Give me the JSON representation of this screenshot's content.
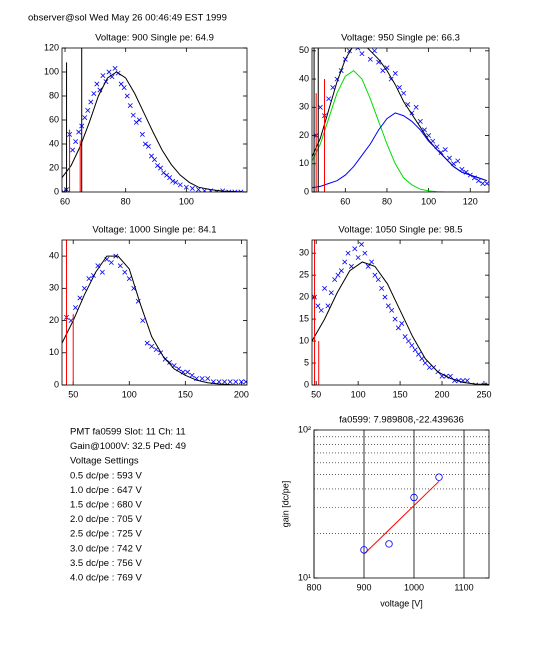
{
  "header": "observer@sol  Wed May 26 00:46:49 EST 1999",
  "info": {
    "lines": [
      "PMT fa0599 Slot: 11 Ch: 11",
      "Gain@1000V: 32.5 Ped: 49",
      "Voltage Settings",
      "0.5 dc/pe : 593 V",
      "1.0 dc/pe : 647 V",
      "1.5 dc/pe : 680 V",
      "2.0 dc/pe : 705 V",
      "2.5 dc/pe : 725 V",
      "3.0 dc/pe : 742 V",
      "3.5 dc/pe : 756 V",
      "4.0 dc/pe : 769 V"
    ]
  },
  "chart_data": [
    {
      "type": "scatter",
      "title": "Voltage: 900 Single pe: 64.9",
      "xlim": [
        59,
        120
      ],
      "xticks": [
        60,
        80,
        100
      ],
      "ylim": [
        0,
        120
      ],
      "yticks": [
        0,
        20,
        40,
        60,
        80,
        100,
        120
      ],
      "series": [
        {
          "color": "#0000ff",
          "style": "marker",
          "marker": "x",
          "x": [
            59.5,
            60.5,
            61.5,
            62.5,
            63.5,
            64.5,
            65.5,
            66.5,
            67.5,
            68.5,
            69.5,
            70.5,
            71.5,
            72.5,
            73.5,
            74.5,
            75.5,
            76.5,
            77.5,
            78.5,
            79.5,
            80.5,
            81.5,
            82.5,
            83.5,
            84.5,
            85.5,
            86.5,
            87.5,
            88.5,
            89.5,
            90.5,
            91.5,
            92.5,
            93.5,
            94.5,
            95.5,
            96.5,
            98,
            100,
            102,
            104,
            106,
            108,
            110,
            112,
            114,
            116,
            118
          ],
          "values": [
            0,
            2,
            48,
            35,
            42,
            50,
            55,
            62,
            68,
            75,
            82,
            90,
            85,
            97,
            92,
            100,
            96,
            103,
            99,
            90,
            87,
            80,
            72,
            64,
            58,
            60,
            48,
            40,
            38,
            30,
            27,
            22,
            20,
            16,
            14,
            12,
            9,
            8,
            6,
            4,
            3,
            2,
            1,
            1,
            0,
            1,
            0,
            0,
            0
          ]
        },
        {
          "color": "#000000",
          "style": "line",
          "x": [
            59,
            62,
            65,
            68,
            71,
            74,
            77,
            80,
            83,
            86,
            89,
            92,
            95,
            98,
            101,
            104,
            108,
            112,
            120
          ],
          "values": [
            12,
            22,
            38,
            58,
            80,
            95,
            100,
            95,
            82,
            66,
            50,
            35,
            23,
            14,
            8,
            4,
            2,
            0.7,
            0
          ]
        },
        {
          "color": "#ff0000",
          "style": "stem",
          "x": [
            61.5,
            65
          ],
          "values": [
            52,
            43
          ]
        },
        {
          "color": "#000000",
          "style": "stem",
          "x": [
            60.5,
            65.5
          ],
          "values": [
            108,
            120
          ]
        }
      ]
    },
    {
      "type": "scatter",
      "title": "Voltage: 950 Single pe: 66.3",
      "xlim": [
        44,
        129
      ],
      "xticks": [
        60,
        80,
        100,
        120
      ],
      "ylim": [
        0,
        51
      ],
      "yticks": [
        0,
        10,
        20,
        30,
        40,
        50
      ],
      "series": [
        {
          "color": "#0000ff",
          "style": "marker",
          "marker": "x",
          "x": [
            46,
            48,
            50,
            52,
            54,
            56,
            58,
            60,
            62,
            64,
            66,
            68,
            70,
            72,
            74,
            76,
            78,
            80,
            82,
            84,
            86,
            88,
            90,
            92,
            94,
            96,
            98,
            100,
            102,
            104,
            106,
            108,
            110,
            112,
            114,
            116,
            118,
            120,
            122,
            124,
            126,
            128
          ],
          "values": [
            20,
            30,
            27,
            33,
            37,
            40,
            43,
            47,
            50,
            52,
            51,
            49,
            53,
            47,
            50,
            46,
            43,
            44,
            40,
            42,
            37,
            35,
            31,
            28,
            30,
            25,
            22,
            20,
            18,
            16,
            14,
            15,
            12,
            10,
            11,
            8,
            7,
            6,
            5,
            4,
            3,
            3
          ]
        },
        {
          "color": "#000000",
          "style": "line",
          "x": [
            44,
            48,
            52,
            56,
            60,
            64,
            68,
            72,
            76,
            80,
            84,
            88,
            92,
            96,
            100,
            104,
            108,
            112,
            116,
            120,
            124,
            128
          ],
          "values": [
            12.5,
            19,
            29,
            39,
            47,
            52,
            53,
            50,
            47,
            43,
            38,
            32,
            27.5,
            23,
            18.4,
            15,
            12,
            9,
            7,
            6,
            5,
            4
          ]
        },
        {
          "color": "#00dd00",
          "style": "line",
          "x": [
            44,
            48,
            52,
            56,
            60,
            64,
            68,
            72,
            76,
            80,
            84,
            88,
            92,
            96,
            100,
            104,
            108,
            112,
            116,
            120,
            124,
            128
          ],
          "values": [
            11,
            17,
            26,
            35,
            41,
            43,
            40,
            33,
            25,
            17,
            10,
            5,
            2.5,
            1,
            0.4,
            0.1,
            0,
            0,
            0,
            0,
            0,
            0
          ]
        },
        {
          "color": "#0000ff",
          "style": "line",
          "x": [
            44,
            48,
            52,
            56,
            60,
            64,
            68,
            72,
            76,
            80,
            84,
            88,
            92,
            96,
            100,
            104,
            108,
            112,
            116,
            120,
            124,
            128
          ],
          "values": [
            1.5,
            2,
            3,
            4,
            6,
            9,
            13,
            17,
            22,
            26,
            28,
            27,
            25,
            22,
            18,
            15,
            12,
            9,
            7,
            6,
            5,
            4
          ]
        },
        {
          "color": "#ff0000",
          "style": "stem",
          "x": [
            46,
            50
          ],
          "values": [
            35,
            40
          ]
        },
        {
          "color": "#000000",
          "style": "stem",
          "x": [
            45,
            47
          ],
          "values": [
            51,
            51
          ]
        }
      ]
    },
    {
      "type": "scatter",
      "title": "Voltage: 1000 Single pe: 84.1",
      "xlim": [
        40,
        205
      ],
      "xticks": [
        50,
        100,
        150,
        200
      ],
      "ylim": [
        0,
        45
      ],
      "yticks": [
        0,
        10,
        20,
        30,
        40
      ],
      "series": [
        {
          "color": "#0000ff",
          "style": "marker",
          "marker": "x",
          "x": [
            44,
            48,
            52,
            56,
            60,
            64,
            68,
            72,
            76,
            80,
            84,
            88,
            92,
            96,
            100,
            104,
            108,
            112,
            116,
            120,
            124,
            128,
            132,
            136,
            140,
            144,
            148,
            152,
            156,
            160,
            165,
            170,
            175,
            180,
            185,
            190,
            195,
            200,
            204
          ],
          "values": [
            21,
            20,
            24,
            27,
            30,
            33,
            34,
            37,
            35,
            39,
            38,
            40,
            37,
            35,
            33,
            30,
            26,
            20,
            13,
            12,
            11,
            10,
            8,
            7,
            6,
            5,
            4,
            4,
            3,
            2,
            2,
            2,
            1,
            1,
            1,
            1,
            1,
            1,
            1
          ]
        },
        {
          "color": "#000000",
          "style": "line",
          "x": [
            40,
            50,
            60,
            70,
            80,
            90,
            100,
            110,
            120,
            130,
            140,
            150,
            160,
            170,
            180,
            190,
            200,
            205
          ],
          "values": [
            13,
            20,
            28,
            35,
            40,
            40,
            36,
            25,
            15,
            9,
            5,
            3,
            1.5,
            0.7,
            0.3,
            0.1,
            0,
            0
          ]
        },
        {
          "color": "#ff0000",
          "style": "stem",
          "x": [
            44,
            50
          ],
          "values": [
            45,
            22
          ]
        }
      ]
    },
    {
      "type": "scatter",
      "title": "Voltage: 1050 Single pe: 98.5",
      "xlim": [
        45,
        256
      ],
      "xticks": [
        50,
        100,
        150,
        200,
        250
      ],
      "ylim": [
        0,
        33
      ],
      "yticks": [
        0,
        5,
        10,
        15,
        20,
        25,
        30
      ],
      "series": [
        {
          "color": "#0000ff",
          "style": "marker",
          "marker": "x",
          "x": [
            48,
            52,
            56,
            60,
            64,
            68,
            72,
            76,
            80,
            84,
            88,
            92,
            96,
            100,
            104,
            108,
            112,
            116,
            120,
            124,
            128,
            132,
            136,
            140,
            144,
            148,
            152,
            156,
            160,
            164,
            168,
            172,
            176,
            180,
            185,
            190,
            195,
            200,
            205,
            210,
            215,
            220,
            225,
            230,
            240,
            250,
            255
          ],
          "values": [
            20,
            18,
            17,
            22,
            18,
            21,
            24,
            25,
            26,
            28,
            30,
            27,
            31,
            29,
            32,
            30,
            27,
            28,
            25,
            24,
            22,
            20,
            18,
            17,
            15,
            13,
            14,
            11,
            10,
            9,
            8,
            7,
            6,
            5,
            4,
            4,
            3,
            2,
            2,
            2,
            1,
            1,
            1,
            1,
            0,
            0,
            0
          ]
        },
        {
          "color": "#000000",
          "style": "line",
          "x": [
            45,
            60,
            75,
            90,
            105,
            120,
            135,
            150,
            165,
            180,
            195,
            210,
            225,
            240,
            256
          ],
          "values": [
            10,
            15,
            21,
            26,
            28,
            27,
            23,
            17,
            11,
            6,
            3,
            1.5,
            0.6,
            0.2,
            0.1
          ]
        },
        {
          "color": "#ff0000",
          "style": "stem",
          "x": [
            48,
            53
          ],
          "values": [
            33,
            10
          ]
        }
      ]
    },
    {
      "type": "scatter",
      "title": "fa0599: 7.989808,-22.439636",
      "xlabel": "voltage [V]",
      "ylabel": "gain [dc/pe]",
      "log_y": true,
      "xgrid": true,
      "xlim": [
        800,
        1150
      ],
      "xticks": [
        800,
        900,
        1000,
        1100
      ],
      "ylim": [
        10,
        100
      ],
      "yticks": [
        {
          "value": 10,
          "label": "10¹"
        },
        {
          "value": 100,
          "label": "10²"
        }
      ],
      "yminorticks": [
        20,
        30,
        40,
        50,
        60,
        70,
        80,
        90
      ],
      "series": [
        {
          "color": "#0000ff",
          "style": "marker",
          "marker": "o",
          "x": [
            900,
            950,
            1000,
            1050
          ],
          "values": [
            15.5,
            17,
            35,
            48
          ]
        },
        {
          "color": "#ff0000",
          "style": "line",
          "x": [
            900,
            1050
          ],
          "values": [
            14.5,
            45
          ]
        }
      ]
    }
  ]
}
